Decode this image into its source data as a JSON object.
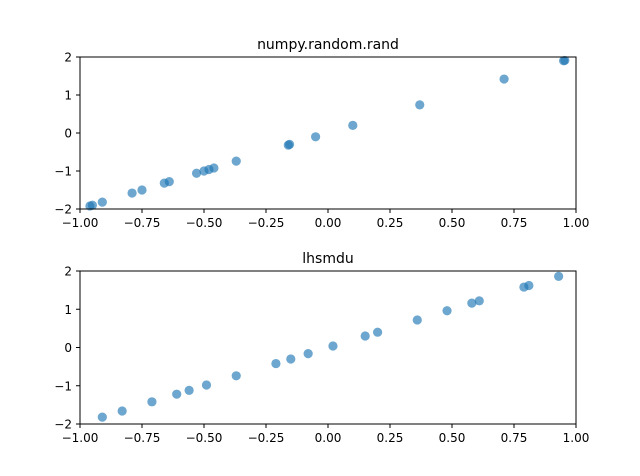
{
  "chart_data": [
    {
      "type": "scatter",
      "title": "numpy.random.rand",
      "xlabel": "",
      "ylabel": "",
      "xlim": [
        -1.0,
        1.0
      ],
      "ylim": [
        -2,
        2
      ],
      "xticks": [
        "−1.00",
        "−0.75",
        "−0.50",
        "−0.25",
        "0.00",
        "0.25",
        "0.50",
        "0.75",
        "1.00"
      ],
      "yticks": [
        "−2",
        "−1",
        "0",
        "1",
        "2"
      ],
      "grid": false,
      "color": "#1f77b4",
      "series": [
        {
          "x": [
            -0.96,
            -0.95,
            -0.91,
            -0.79,
            -0.75,
            -0.66,
            -0.64,
            -0.53,
            -0.5,
            -0.48,
            -0.46,
            -0.37,
            -0.16,
            -0.155,
            -0.05,
            0.1,
            0.37,
            0.71,
            0.95,
            0.955
          ],
          "y": [
            -1.92,
            -1.9,
            -1.82,
            -1.58,
            -1.5,
            -1.32,
            -1.28,
            -1.06,
            -1.0,
            -0.96,
            -0.92,
            -0.74,
            -0.32,
            -0.3,
            -0.1,
            0.2,
            0.74,
            1.42,
            1.9,
            1.91
          ]
        }
      ]
    },
    {
      "type": "scatter",
      "title": "lhsmdu",
      "xlabel": "",
      "ylabel": "",
      "xlim": [
        -1.0,
        1.0
      ],
      "ylim": [
        -2,
        2
      ],
      "xticks": [
        "−1.00",
        "−0.75",
        "−0.50",
        "−0.25",
        "0.00",
        "0.25",
        "0.50",
        "0.75",
        "1.00"
      ],
      "yticks": [
        "−2",
        "−1",
        "0",
        "1",
        "2"
      ],
      "grid": false,
      "color": "#1f77b4",
      "series": [
        {
          "x": [
            -0.91,
            -0.83,
            -0.71,
            -0.61,
            -0.56,
            -0.49,
            -0.37,
            -0.21,
            -0.15,
            -0.08,
            0.02,
            0.15,
            0.2,
            0.36,
            0.48,
            0.58,
            0.61,
            0.79,
            0.81,
            0.93
          ],
          "y": [
            -1.82,
            -1.66,
            -1.42,
            -1.22,
            -1.12,
            -0.98,
            -0.74,
            -0.42,
            -0.3,
            -0.16,
            0.04,
            0.3,
            0.4,
            0.72,
            0.96,
            1.16,
            1.22,
            1.58,
            1.62,
            1.86
          ]
        }
      ]
    }
  ]
}
